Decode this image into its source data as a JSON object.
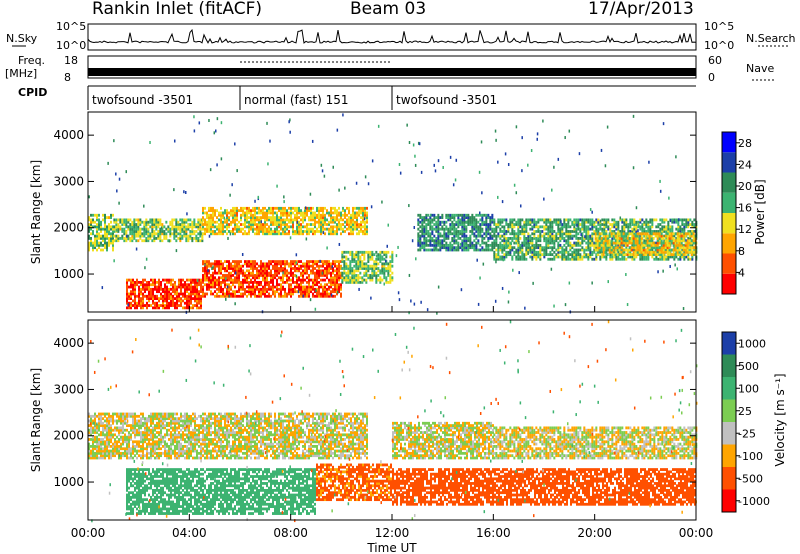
{
  "header": {
    "title": "Rankin Inlet (fitACF)",
    "beam": "Beam 03",
    "date": "17/Apr/2013"
  },
  "nsky_panel": {
    "left_label": "N.Sky",
    "right_label": "N.Search",
    "left_ticks": [
      "10^5",
      "10^0"
    ],
    "right_ticks": [
      "10^5",
      "10^0"
    ]
  },
  "freq_panel": {
    "left_label_1": "Freq.",
    "left_label_2": "[MHz]",
    "left_ticks": [
      "18",
      "8"
    ],
    "right_label": "Nave",
    "right_ticks": [
      "60",
      "0"
    ]
  },
  "cpid_panel": {
    "label": "CPID",
    "modes": [
      {
        "name": "twofsound -3501",
        "start_hour": 0,
        "end_hour": 6
      },
      {
        "name": "normal (fast) 151",
        "start_hour": 6,
        "end_hour": 12
      },
      {
        "name": "twofsound -3501",
        "start_hour": 12,
        "end_hour": 24
      }
    ]
  },
  "chart_data": [
    {
      "type": "heatmap",
      "name": "Power",
      "ylabel": "Slant Range [km]",
      "xlim": [
        0,
        24
      ],
      "ylim": [
        180,
        4500
      ],
      "yticks": [
        1000,
        2000,
        3000,
        4000
      ],
      "colorbar": {
        "label": "Power [dB]",
        "ticks": [
          "28",
          "24",
          "20",
          "16",
          "12",
          "8",
          "4"
        ],
        "tick_values": [
          28,
          24,
          20,
          16,
          12,
          8,
          4
        ],
        "range": [
          0,
          30
        ],
        "colors": [
          "#0000ff",
          "#1c3fa8",
          "#2e8b57",
          "#3cb371",
          "#f0e020",
          "#ffa500",
          "#ff5000",
          "#ff0000"
        ]
      },
      "echo_bands": [
        {
          "t0": 0.0,
          "t1": 1.0,
          "r0": 1500,
          "r1": 2300,
          "power": 14
        },
        {
          "t0": 1.0,
          "t1": 4.5,
          "r0": 1700,
          "r1": 2200,
          "power": 14
        },
        {
          "t0": 4.5,
          "t1": 11.0,
          "r0": 1850,
          "r1": 2450,
          "power": 18
        },
        {
          "t0": 1.5,
          "t1": 4.5,
          "r0": 250,
          "r1": 900,
          "power": 26
        },
        {
          "t0": 4.5,
          "t1": 10.0,
          "r0": 500,
          "r1": 1300,
          "power": 25
        },
        {
          "t0": 10.0,
          "t1": 12.0,
          "r0": 800,
          "r1": 1500,
          "power": 14
        },
        {
          "t0": 13.0,
          "t1": 16.0,
          "r0": 1500,
          "r1": 2300,
          "power": 10
        },
        {
          "t0": 16.0,
          "t1": 24.0,
          "r0": 1300,
          "r1": 2200,
          "power": 12
        },
        {
          "t0": 20.0,
          "t1": 24.0,
          "r0": 1400,
          "r1": 1900,
          "power": 18
        }
      ]
    },
    {
      "type": "heatmap",
      "name": "Velocity",
      "xlabel": "Time UT",
      "ylabel": "Slant Range [km]",
      "xlim": [
        0,
        24
      ],
      "ylim": [
        180,
        4500
      ],
      "yticks": [
        1000,
        2000,
        3000,
        4000
      ],
      "xticks": [
        "00:00",
        "04:00",
        "08:00",
        "12:00",
        "16:00",
        "20:00",
        "00:00"
      ],
      "xtick_hours": [
        0,
        4,
        8,
        12,
        16,
        20,
        24
      ],
      "colorbar": {
        "label": "Velocity [m s⁻¹]",
        "ticks": [
          "1000",
          "500",
          "100",
          "25",
          "-25",
          "-100",
          "-500",
          "-1000"
        ],
        "colors": [
          "#1c3fa8",
          "#2e8b57",
          "#3cb371",
          "#7ccd52",
          "#c0c0c0",
          "#ffa500",
          "#ff5000",
          "#ff0000"
        ]
      },
      "echo_bands": [
        {
          "t0": 0.0,
          "t1": 11.0,
          "r0": 1500,
          "r1": 2500,
          "velocity": 0
        },
        {
          "t0": 1.5,
          "t1": 9.0,
          "r0": 300,
          "r1": 1300,
          "velocity": 300
        },
        {
          "t0": 9.0,
          "t1": 12.0,
          "r0": 600,
          "r1": 1400,
          "velocity": -150
        },
        {
          "t0": 12.0,
          "t1": 16.0,
          "r0": 1500,
          "r1": 2300,
          "velocity": 0
        },
        {
          "t0": 16.0,
          "t1": 24.0,
          "r0": 1500,
          "r1": 2200,
          "velocity": 0
        },
        {
          "t0": 12.0,
          "t1": 24.0,
          "r0": 500,
          "r1": 1300,
          "velocity": -200
        }
      ]
    }
  ]
}
